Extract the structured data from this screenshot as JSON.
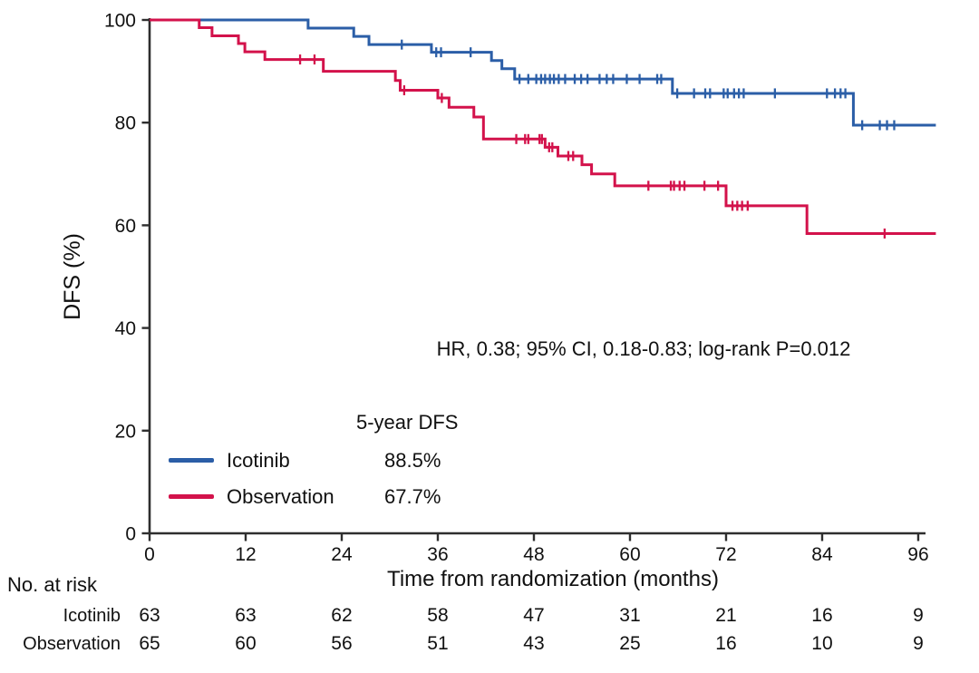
{
  "figure": {
    "annotation": "HR, 0.38; 95% CI, 0.18-0.83; log-rank P=0.012",
    "legend": {
      "header": "5-year DFS",
      "entries": [
        {
          "label": "Icotinib",
          "value": "88.5%",
          "color": "#2B5EA7"
        },
        {
          "label": "Observation",
          "value": "67.7%",
          "color": "#D3124B"
        }
      ]
    },
    "risk_table": {
      "title": "No. at risk",
      "rows": [
        {
          "label": "Icotinib",
          "counts": [
            63,
            63,
            62,
            58,
            47,
            31,
            21,
            16,
            9
          ]
        },
        {
          "label": "Observation",
          "counts": [
            65,
            60,
            56,
            51,
            43,
            25,
            16,
            10,
            9
          ]
        }
      ]
    }
  },
  "colors": {
    "icotinib": "#2B5EA7",
    "observation": "#D3124B",
    "axis": "#2e2e2e",
    "text": "#111111"
  },
  "chart_data": {
    "type": "line",
    "subtype": "kaplan-meier-step",
    "title": "",
    "xlabel": "Time from randomization (months)",
    "ylabel": "DFS (%)",
    "xlim": [
      0,
      96
    ],
    "ylim": [
      0,
      100
    ],
    "xticks": [
      0,
      12,
      24,
      36,
      48,
      60,
      72,
      84,
      96
    ],
    "yticks": [
      0,
      20,
      40,
      60,
      80,
      100
    ],
    "grid": false,
    "legend_position": "lower-left-inside",
    "series": [
      {
        "name": "Icotinib",
        "color": "#2B5EA7",
        "start_value": 100,
        "end_month": 98.2,
        "five_year_dfs": "88.5%",
        "steps": [
          [
            19.8,
            98.4
          ],
          [
            25.5,
            96.8
          ],
          [
            27.4,
            95.2
          ],
          [
            35.2,
            93.7
          ],
          [
            42.7,
            92.1
          ],
          [
            44.0,
            90.5
          ],
          [
            45.6,
            88.5
          ],
          [
            65.3,
            85.7
          ],
          [
            87.9,
            79.5
          ]
        ],
        "censors": [
          [
            31.5,
            95.2
          ],
          [
            35.8,
            93.7
          ],
          [
            36.4,
            93.7
          ],
          [
            40.1,
            93.7
          ],
          [
            46.2,
            88.5
          ],
          [
            47.3,
            88.5
          ],
          [
            48.3,
            88.5
          ],
          [
            48.9,
            88.5
          ],
          [
            49.4,
            88.5
          ],
          [
            50.0,
            88.5
          ],
          [
            50.5,
            88.5
          ],
          [
            51.1,
            88.5
          ],
          [
            51.9,
            88.5
          ],
          [
            53.1,
            88.5
          ],
          [
            53.9,
            88.5
          ],
          [
            54.7,
            88.5
          ],
          [
            56.2,
            88.5
          ],
          [
            57.1,
            88.5
          ],
          [
            57.9,
            88.5
          ],
          [
            59.6,
            88.5
          ],
          [
            61.2,
            88.5
          ],
          [
            63.4,
            88.5
          ],
          [
            63.9,
            88.5
          ],
          [
            65.9,
            85.7
          ],
          [
            68.0,
            85.7
          ],
          [
            69.4,
            85.7
          ],
          [
            70.0,
            85.7
          ],
          [
            71.7,
            85.7
          ],
          [
            72.2,
            85.7
          ],
          [
            73.0,
            85.7
          ],
          [
            73.6,
            85.7
          ],
          [
            74.2,
            85.7
          ],
          [
            78.1,
            85.7
          ],
          [
            84.6,
            85.7
          ],
          [
            85.6,
            85.7
          ],
          [
            86.3,
            85.7
          ],
          [
            86.9,
            85.7
          ],
          [
            89.0,
            79.5
          ],
          [
            91.2,
            79.5
          ],
          [
            92.1,
            79.5
          ],
          [
            93.0,
            79.5
          ]
        ]
      },
      {
        "name": "Observation",
        "color": "#D3124B",
        "start_value": 100,
        "end_month": 98.2,
        "five_year_dfs": "67.7%",
        "steps": [
          [
            6.2,
            98.5
          ],
          [
            7.8,
            96.9
          ],
          [
            11.1,
            95.4
          ],
          [
            11.9,
            93.8
          ],
          [
            14.4,
            92.3
          ],
          [
            21.7,
            90.0
          ],
          [
            30.7,
            88.2
          ],
          [
            31.3,
            86.3
          ],
          [
            36.0,
            84.8
          ],
          [
            37.4,
            83.0
          ],
          [
            40.5,
            81.1
          ],
          [
            41.7,
            76.8
          ],
          [
            49.4,
            75.2
          ],
          [
            51.0,
            73.5
          ],
          [
            54.0,
            71.8
          ],
          [
            55.2,
            70.0
          ],
          [
            58.1,
            67.7
          ],
          [
            72.0,
            63.8
          ],
          [
            82.1,
            58.4
          ]
        ],
        "censors": [
          [
            18.8,
            92.3
          ],
          [
            20.6,
            92.3
          ],
          [
            31.8,
            86.3
          ],
          [
            36.5,
            84.8
          ],
          [
            45.8,
            76.8
          ],
          [
            46.9,
            76.8
          ],
          [
            47.3,
            76.8
          ],
          [
            48.7,
            76.8
          ],
          [
            49.0,
            76.8
          ],
          [
            49.9,
            75.2
          ],
          [
            50.3,
            75.2
          ],
          [
            52.3,
            73.5
          ],
          [
            52.9,
            73.5
          ],
          [
            62.3,
            67.7
          ],
          [
            65.1,
            67.7
          ],
          [
            65.5,
            67.7
          ],
          [
            66.2,
            67.7
          ],
          [
            66.8,
            67.7
          ],
          [
            69.3,
            67.7
          ],
          [
            71.0,
            67.7
          ],
          [
            72.8,
            63.8
          ],
          [
            73.4,
            63.8
          ],
          [
            74.0,
            63.8
          ],
          [
            74.7,
            63.8
          ],
          [
            91.8,
            58.4
          ]
        ]
      }
    ]
  }
}
